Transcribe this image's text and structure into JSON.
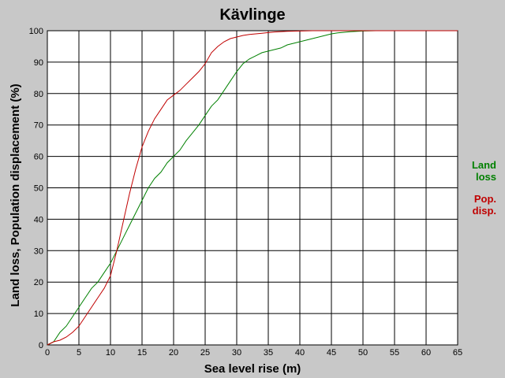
{
  "chart_data": {
    "type": "line",
    "title": "Kävlinge",
    "xlabel": "Sea level rise (m)",
    "ylabel": "Land loss, Population displacement (%)",
    "xlim": [
      0,
      65
    ],
    "ylim": [
      0,
      100
    ],
    "xticks": [
      0,
      5,
      10,
      15,
      20,
      25,
      30,
      35,
      40,
      45,
      50,
      55,
      60,
      65
    ],
    "yticks": [
      0,
      10,
      20,
      30,
      40,
      50,
      60,
      70,
      80,
      90,
      100
    ],
    "grid": true,
    "background": "#ffffff",
    "legend_position": "right",
    "series": [
      {
        "name": "Land loss",
        "legend_lines": [
          "Land",
          "loss"
        ],
        "color": "#008000",
        "x": [
          0,
          1,
          2,
          3,
          4,
          5,
          6,
          7,
          8,
          9,
          10,
          11,
          12,
          13,
          14,
          15,
          16,
          17,
          18,
          19,
          20,
          21,
          22,
          23,
          24,
          25,
          26,
          27,
          28,
          29,
          30,
          31,
          32,
          33,
          34,
          35,
          36,
          37,
          38,
          39,
          40,
          41,
          42,
          43,
          44,
          45,
          46,
          47,
          48,
          50,
          52,
          54
        ],
        "y": [
          0,
          1,
          4,
          6,
          9,
          12,
          15,
          18,
          20,
          23,
          26,
          30,
          34,
          38,
          42,
          46,
          50,
          53,
          55,
          58,
          60,
          62,
          65,
          67.5,
          70,
          73,
          76,
          78,
          81,
          84,
          87,
          89.5,
          91,
          92,
          93,
          93.5,
          94,
          94.5,
          95.5,
          96,
          96.5,
          97,
          97.5,
          98,
          98.5,
          99,
          99.3,
          99.5,
          99.7,
          99.9,
          100,
          100
        ]
      },
      {
        "name": "Pop. disp.",
        "legend_lines": [
          "Pop.",
          "disp."
        ],
        "color": "#c00000",
        "x": [
          0,
          1,
          2,
          3,
          4,
          5,
          6,
          7,
          8,
          9,
          10,
          11,
          12,
          13,
          14,
          15,
          16,
          17,
          18,
          19,
          20,
          21,
          22,
          23,
          24,
          25,
          26,
          27,
          28,
          29,
          30,
          31,
          32,
          33,
          34,
          35,
          36,
          38,
          40,
          42,
          44,
          46,
          50,
          55,
          60,
          65
        ],
        "y": [
          0,
          1,
          1.5,
          2.5,
          4,
          6,
          9,
          12,
          15,
          18,
          22,
          30,
          39,
          48,
          56,
          63,
          68,
          72,
          75,
          78,
          79.5,
          81,
          83,
          85,
          87,
          89.5,
          93,
          95,
          96.5,
          97.5,
          98,
          98.5,
          98.8,
          99,
          99.2,
          99.4,
          99.6,
          99.8,
          99.9,
          100,
          100,
          100,
          100,
          100,
          100,
          100
        ]
      }
    ]
  }
}
